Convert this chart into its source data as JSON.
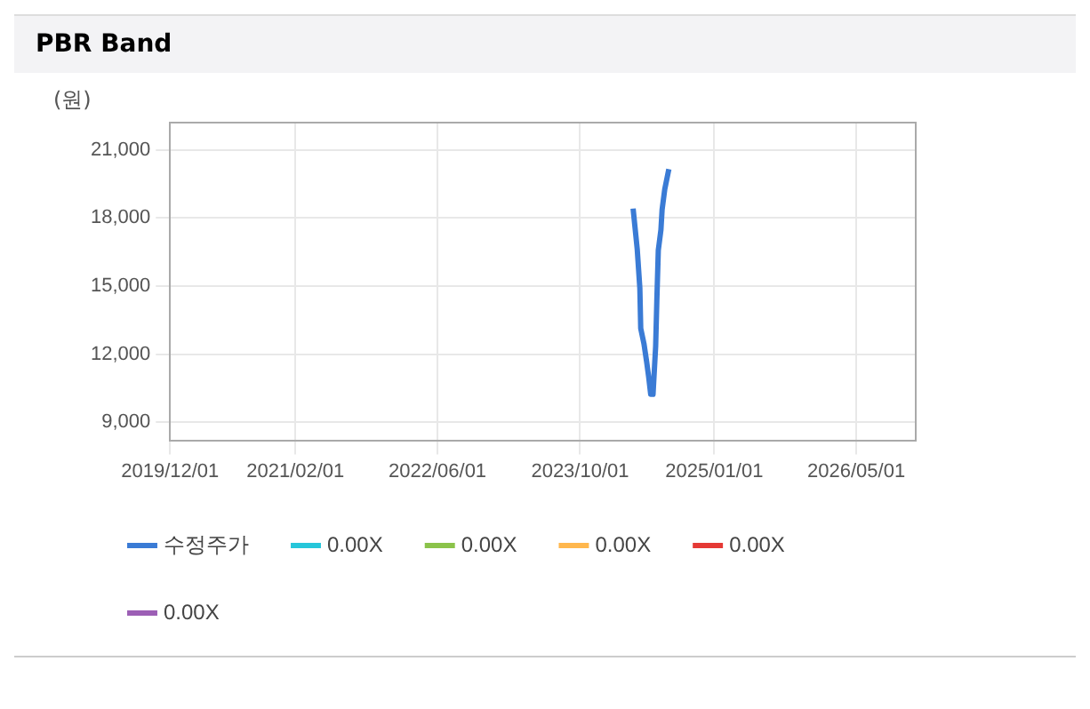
{
  "chart_data": {
    "type": "line",
    "title": "PBR Band",
    "ylabel": "(원)",
    "xlim": [
      "2019-12-01",
      "2026-11-20"
    ],
    "xticks": [
      {
        "value": "2019-12-01",
        "label": "2019/12/01"
      },
      {
        "value": "2021-02-01",
        "label": "2021/02/01"
      },
      {
        "value": "2022-06-01",
        "label": "2022/06/01"
      },
      {
        "value": "2023-10-01",
        "label": "2023/10/01"
      },
      {
        "value": "2025-01-01",
        "label": "2025/01/01"
      },
      {
        "value": "2026-05-01",
        "label": "2026/05/01"
      }
    ],
    "ylim": [
      8200,
      22200
    ],
    "yticks": [
      {
        "value": 9000,
        "label": "9,000"
      },
      {
        "value": 12000,
        "label": "12,000"
      },
      {
        "value": 15000,
        "label": "15,000"
      },
      {
        "value": 18000,
        "label": "18,000"
      },
      {
        "value": 21000,
        "label": "21,000"
      }
    ],
    "grid": true,
    "legend": "bottom",
    "marker": "none",
    "line_style": "solid",
    "series": [
      {
        "name": "수정주가",
        "color": "#3a7bd5",
        "x": [
          "2024-03-30",
          "2024-04-13",
          "2024-04-22",
          "2024-04-25",
          "2024-05-06",
          "2024-05-15",
          "2024-05-22",
          "2024-05-29",
          "2024-06-06",
          "2024-06-15",
          "2024-06-19",
          "2024-06-24",
          "2024-07-03",
          "2024-07-07",
          "2024-07-16",
          "2024-07-30"
        ],
        "values": [
          18410,
          16630,
          14910,
          13130,
          12460,
          11680,
          11010,
          10230,
          10230,
          12350,
          14350,
          16580,
          17480,
          18370,
          19260,
          20150
        ]
      },
      {
        "name": "0.00X",
        "color": "#26c6da"
      },
      {
        "name": "0.00X",
        "color": "#8bc34a"
      },
      {
        "name": "0.00X",
        "color": "#ffb74d"
      },
      {
        "name": "0.00X",
        "color": "#e53935"
      },
      {
        "name": "0.00X",
        "color": "#9c5fb5"
      }
    ]
  }
}
